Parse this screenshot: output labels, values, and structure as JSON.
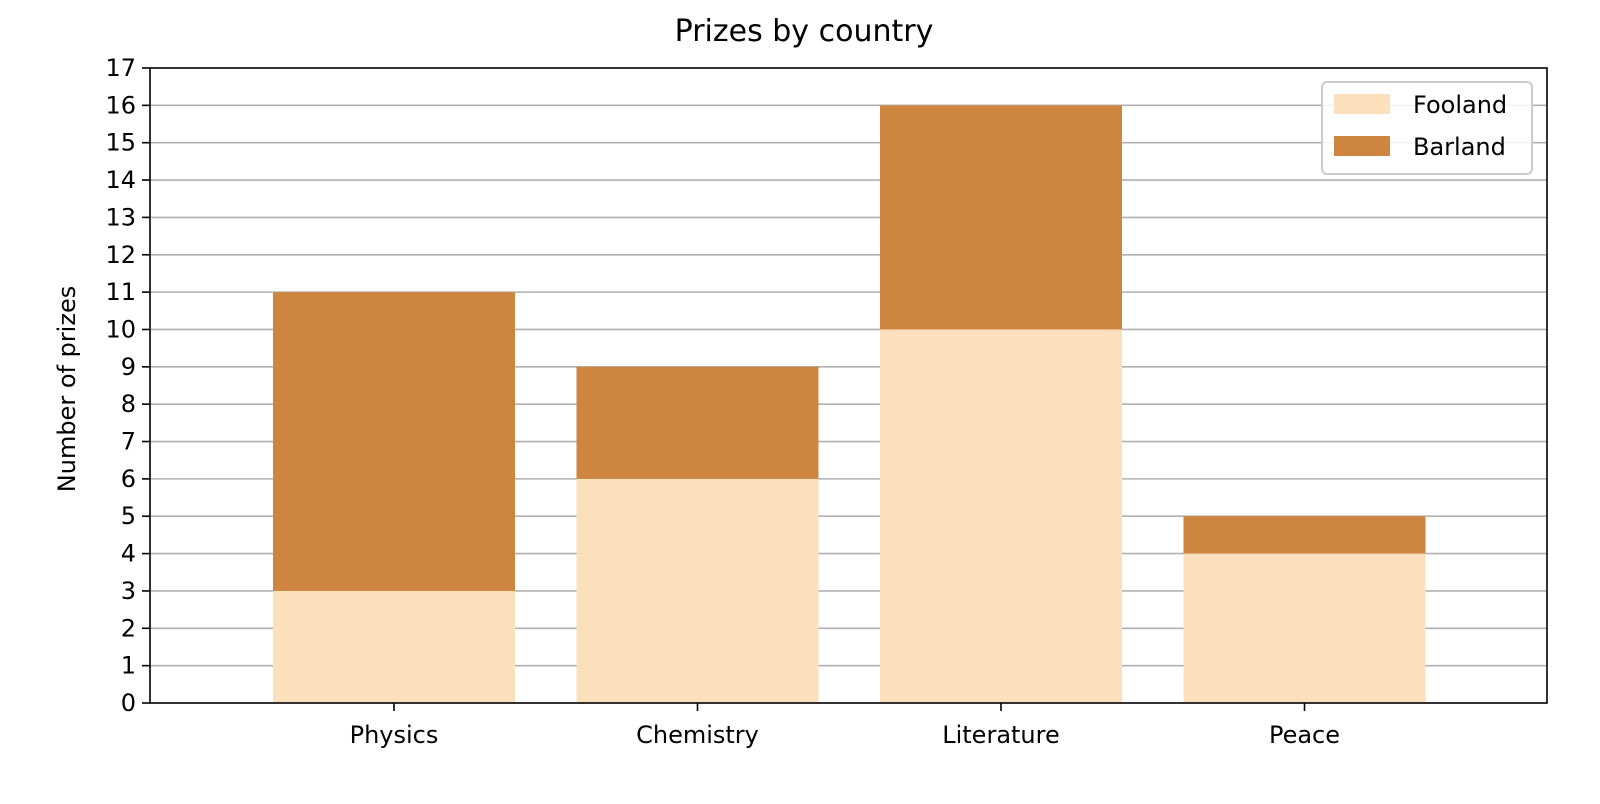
{
  "chart_data": {
    "type": "bar",
    "stacked": true,
    "title": "Prizes by country",
    "xlabel": "",
    "ylabel": "Number of prizes",
    "categories": [
      "Physics",
      "Chemistry",
      "Literature",
      "Peace"
    ],
    "series": [
      {
        "name": "Fooland",
        "values": [
          3,
          6,
          10,
          4
        ],
        "color": "#fce0bc"
      },
      {
        "name": "Barland",
        "values": [
          8,
          3,
          6,
          1
        ],
        "color": "#cd853f"
      }
    ],
    "ylim": [
      0,
      17
    ],
    "yticks": [
      "0",
      "1",
      "2",
      "3",
      "4",
      "5",
      "6",
      "7",
      "8",
      "9",
      "10",
      "11",
      "12",
      "13",
      "14",
      "15",
      "16",
      "17"
    ],
    "grid": "horizontal",
    "grid_color": "#b0b0b0",
    "legend_position": "top-right"
  }
}
